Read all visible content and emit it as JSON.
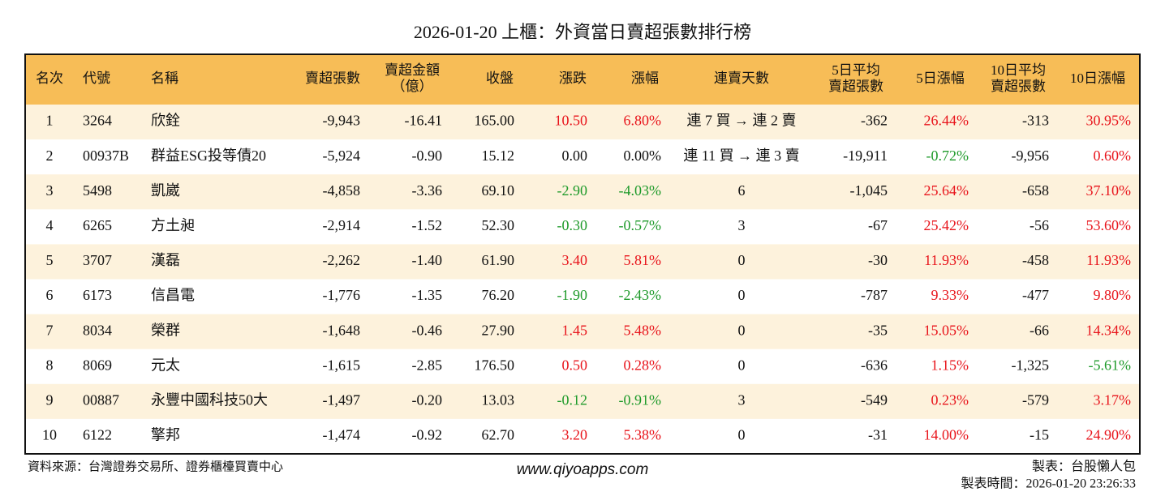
{
  "title": "2026-01-20 上櫃：外資當日賣超張數排行榜",
  "table": {
    "header": [
      [
        "名次"
      ],
      [
        "代號"
      ],
      [
        "名稱"
      ],
      [
        "賣超張數"
      ],
      [
        "賣超金額",
        "（億）"
      ],
      [
        "收盤"
      ],
      [
        "漲跌"
      ],
      [
        "漲幅"
      ],
      [
        "連賣天數"
      ],
      [
        "5日平均",
        "賣超張數"
      ],
      [
        "5日漲幅"
      ],
      [
        "10日平均",
        "賣超張數"
      ],
      [
        "10日漲幅"
      ]
    ],
    "rows": [
      [
        "1",
        "3264",
        "欣銓",
        "-9,943",
        "-16.41",
        "165.00",
        "10.50",
        "6.80%",
        "連 7 買 → 連 2 賣",
        "-362",
        "26.44%",
        "-313",
        "30.95%"
      ],
      [
        "2",
        "00937B",
        "群益ESG投等債20",
        "-5,924",
        "-0.90",
        "15.12",
        "0.00",
        "0.00%",
        "連 11 買 → 連 3 賣",
        "-19,911",
        "-0.72%",
        "-9,956",
        "0.60%"
      ],
      [
        "3",
        "5498",
        "凱崴",
        "-4,858",
        "-3.36",
        "69.10",
        "-2.90",
        "-4.03%",
        "6",
        "-1,045",
        "25.64%",
        "-658",
        "37.10%"
      ],
      [
        "4",
        "6265",
        "方土昶",
        "-2,914",
        "-1.52",
        "52.30",
        "-0.30",
        "-0.57%",
        "3",
        "-67",
        "25.42%",
        "-56",
        "53.60%"
      ],
      [
        "5",
        "3707",
        "漢磊",
        "-2,262",
        "-1.40",
        "61.90",
        "3.40",
        "5.81%",
        "0",
        "-30",
        "11.93%",
        "-458",
        "11.93%"
      ],
      [
        "6",
        "6173",
        "信昌電",
        "-1,776",
        "-1.35",
        "76.20",
        "-1.90",
        "-2.43%",
        "0",
        "-787",
        "9.33%",
        "-477",
        "9.80%"
      ],
      [
        "7",
        "8034",
        "榮群",
        "-1,648",
        "-0.46",
        "27.90",
        "1.45",
        "5.48%",
        "0",
        "-35",
        "15.05%",
        "-66",
        "14.34%"
      ],
      [
        "8",
        "8069",
        "元太",
        "-1,615",
        "-2.85",
        "176.50",
        "0.50",
        "0.28%",
        "0",
        "-636",
        "1.15%",
        "-1,325",
        "-5.61%"
      ],
      [
        "9",
        "00887",
        "永豐中國科技50大",
        "-1,497",
        "-0.20",
        "13.03",
        "-0.12",
        "-0.91%",
        "3",
        "-549",
        "0.23%",
        "-579",
        "3.17%"
      ],
      [
        "10",
        "6122",
        "擎邦",
        "-1,474",
        "-0.92",
        "62.70",
        "3.20",
        "5.38%",
        "0",
        "-31",
        "14.00%",
        "-15",
        "24.90%"
      ]
    ]
  },
  "footer": {
    "source": "資料來源：台灣證券交易所、證券櫃檯買賣中心",
    "site": "www.qiyoapps.com",
    "author": "製表：台股懶人包",
    "time": "製表時間：2026-01-20 23:26:33"
  }
}
